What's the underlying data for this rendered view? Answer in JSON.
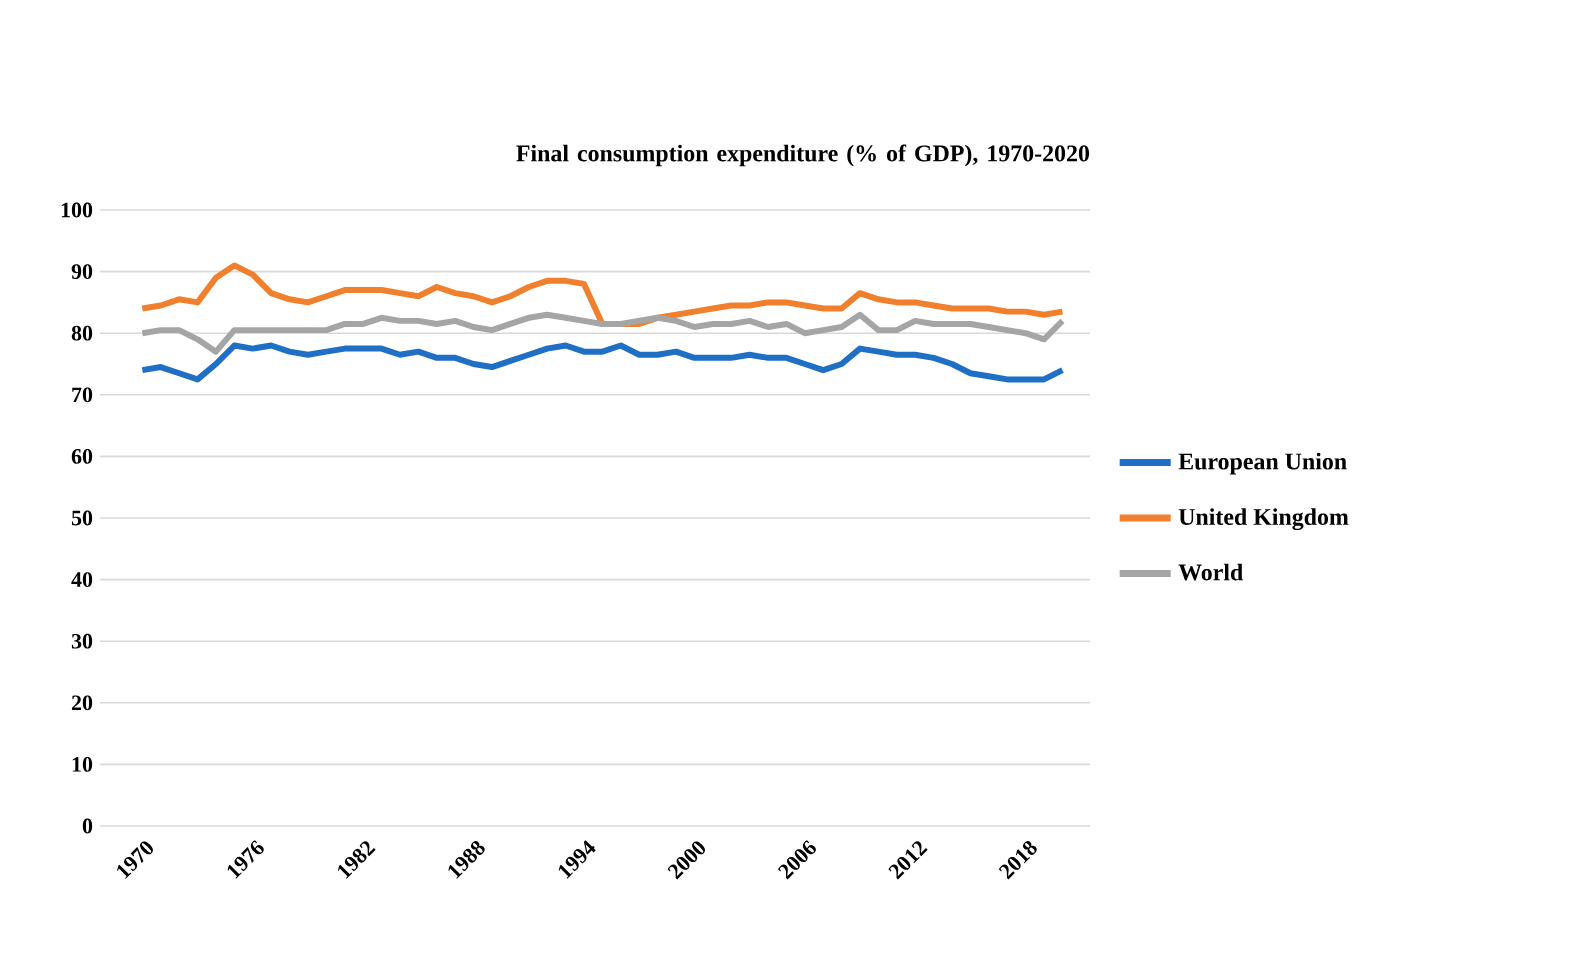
{
  "chart_data": {
    "type": "line",
    "title": "Final consumption expenditure (% of GDP), 1970-2020",
    "categories": [
      "1970",
      null,
      null,
      null,
      null,
      null,
      "1976",
      null,
      null,
      null,
      null,
      null,
      "1982",
      null,
      null,
      null,
      null,
      null,
      "1988",
      null,
      null,
      null,
      null,
      null,
      "1994",
      null,
      null,
      null,
      null,
      null,
      "2000",
      null,
      null,
      null,
      null,
      null,
      "2006",
      null,
      null,
      null,
      null,
      null,
      "2012",
      null,
      null,
      null,
      null,
      null,
      "2018",
      null,
      null
    ],
    "series": [
      {
        "name": "European Union",
        "color": "#1f6fc5",
        "values": [
          74,
          74.5,
          73.5,
          72.5,
          75,
          78,
          77.5,
          78,
          77,
          76.5,
          77,
          77.5,
          77.5,
          77.5,
          76.5,
          77,
          76,
          76,
          75,
          74.5,
          75.5,
          76.5,
          77.5,
          78,
          77,
          77,
          78,
          76.5,
          76.5,
          77,
          76,
          76,
          76,
          76.5,
          76,
          76,
          75,
          74,
          75,
          77.5,
          77,
          76.5,
          76.5,
          76,
          75,
          73.5,
          73,
          72.5,
          72.5,
          72.5,
          74
        ]
      },
      {
        "name": "United Kingdom",
        "color": "#f0802e",
        "values": [
          84,
          84.5,
          85.5,
          85,
          89,
          91,
          89.5,
          86.5,
          85.5,
          85,
          86,
          87,
          87,
          87,
          86.5,
          86,
          87.5,
          86.5,
          86,
          85,
          86,
          87.5,
          88.5,
          88.5,
          88,
          81.5,
          81.5,
          81.5,
          82.5,
          83,
          83.5,
          84,
          84.5,
          84.5,
          85,
          85,
          84.5,
          84,
          84,
          86.5,
          85.5,
          85,
          85,
          84.5,
          84,
          84,
          84,
          83.5,
          83.5,
          83,
          83.5
        ]
      },
      {
        "name": "World",
        "color": "#a5a5a5",
        "values": [
          80,
          80.5,
          80.5,
          79,
          77,
          80.5,
          80.5,
          80.5,
          80.5,
          80.5,
          80.5,
          81.5,
          81.5,
          82.5,
          82,
          82,
          81.5,
          82,
          81,
          80.5,
          81.5,
          82.5,
          83,
          82.5,
          82,
          81.5,
          81.5,
          82,
          82.5,
          82,
          81,
          81.5,
          81.5,
          82,
          81,
          81.5,
          80,
          80.5,
          81,
          83,
          80.5,
          80.5,
          82,
          81.5,
          81.5,
          81.5,
          81,
          80.5,
          80,
          79,
          82
        ]
      }
    ],
    "ylim": [
      0,
      100
    ],
    "yticks": [
      0,
      10,
      20,
      30,
      40,
      50,
      60,
      70,
      80,
      90,
      100
    ],
    "grid": "y",
    "legend": "right"
  }
}
